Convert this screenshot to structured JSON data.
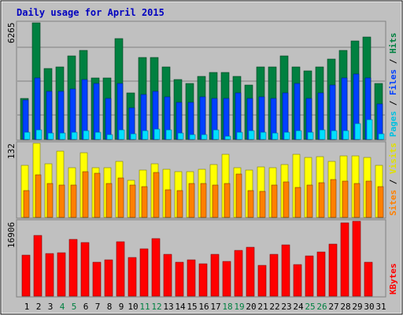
{
  "chart_data": [
    {
      "type": "bar",
      "title": "Daily usage for April 2015",
      "categories": [
        "1",
        "2",
        "3",
        "4",
        "5",
        "6",
        "7",
        "8",
        "9",
        "10",
        "11",
        "12",
        "13",
        "14",
        "15",
        "16",
        "17",
        "18",
        "19",
        "20",
        "21",
        "22",
        "23",
        "24",
        "25",
        "26",
        "27",
        "28",
        "29",
        "30",
        "31"
      ],
      "weekend_days": [
        "4",
        "5",
        "11",
        "12",
        "18",
        "19",
        "25",
        "26"
      ],
      "ylabel_parts": [
        "Pages",
        "Files",
        "Hits"
      ],
      "ytick_max": "6265",
      "ylim": [
        0,
        6265
      ],
      "series": [
        {
          "name": "Hits",
          "color": "#008040",
          "values": [
            2200,
            6265,
            3800,
            3900,
            4500,
            4800,
            3300,
            3300,
            5400,
            2500,
            4400,
            4400,
            3900,
            3200,
            3000,
            3400,
            3600,
            3600,
            3400,
            2900,
            3900,
            3900,
            4500,
            3900,
            3700,
            3900,
            4300,
            4800,
            5300,
            5500,
            3000
          ]
        },
        {
          "name": "Files",
          "color": "#0040ff",
          "values": [
            2100,
            3300,
            2600,
            2600,
            2700,
            3200,
            3000,
            2200,
            3000,
            1700,
            2400,
            2600,
            2300,
            2000,
            2000,
            2300,
            2200,
            2200,
            2500,
            2200,
            2300,
            2200,
            2500,
            3000,
            2200,
            2500,
            2900,
            3300,
            3500,
            3300,
            1900
          ]
        },
        {
          "name": "Pages",
          "color": "#00e0ff",
          "values": [
            400,
            500,
            350,
            350,
            400,
            450,
            400,
            250,
            500,
            300,
            450,
            550,
            500,
            350,
            250,
            250,
            500,
            150,
            400,
            450,
            400,
            350,
            400,
            450,
            400,
            500,
            450,
            450,
            850,
            1050,
            300
          ]
        }
      ]
    },
    {
      "type": "bar",
      "categories": [
        "1",
        "2",
        "3",
        "4",
        "5",
        "6",
        "7",
        "8",
        "9",
        "10",
        "11",
        "12",
        "13",
        "14",
        "15",
        "16",
        "17",
        "18",
        "19",
        "20",
        "21",
        "22",
        "23",
        "24",
        "25",
        "26",
        "27",
        "28",
        "29",
        "30",
        "31"
      ],
      "ylabel_parts": [
        "Sites",
        "Visits"
      ],
      "ytick_max": "132",
      "ylim": [
        0,
        132
      ],
      "series": [
        {
          "name": "Visits",
          "color": "#ffff00",
          "values": [
            93,
            132,
            95,
            118,
            88,
            115,
            88,
            88,
            100,
            66,
            84,
            95,
            86,
            81,
            81,
            86,
            94,
            112,
            88,
            84,
            90,
            88,
            94,
            112,
            107,
            108,
            100,
            110,
            109,
            107,
            93
          ]
        },
        {
          "name": "Sites",
          "color": "#ff8000",
          "values": [
            48,
            76,
            61,
            58,
            58,
            81,
            79,
            61,
            70,
            57,
            55,
            80,
            49,
            48,
            61,
            60,
            58,
            61,
            77,
            48,
            46,
            58,
            63,
            54,
            58,
            62,
            68,
            64,
            61,
            65,
            55
          ]
        }
      ]
    },
    {
      "type": "bar",
      "categories": [
        "1",
        "2",
        "3",
        "4",
        "5",
        "6",
        "7",
        "8",
        "9",
        "10",
        "11",
        "12",
        "13",
        "14",
        "15",
        "16",
        "17",
        "18",
        "19",
        "20",
        "21",
        "22",
        "23",
        "24",
        "25",
        "26",
        "27",
        "28",
        "29",
        "30",
        "31"
      ],
      "ylabel_parts": [
        "KBytes"
      ],
      "ytick_max": "16906",
      "ylim": [
        0,
        16906
      ],
      "series": [
        {
          "name": "KBytes",
          "color": "#ff0000",
          "values": [
            9200,
            13700,
            9600,
            9800,
            12900,
            12100,
            7700,
            8100,
            12300,
            8700,
            10700,
            13000,
            9500,
            7600,
            8100,
            7300,
            9400,
            7900,
            10400,
            11000,
            6900,
            9400,
            11500,
            7200,
            9100,
            10000,
            11700,
            16500,
            16906,
            7700,
            0
          ]
        }
      ]
    }
  ]
}
